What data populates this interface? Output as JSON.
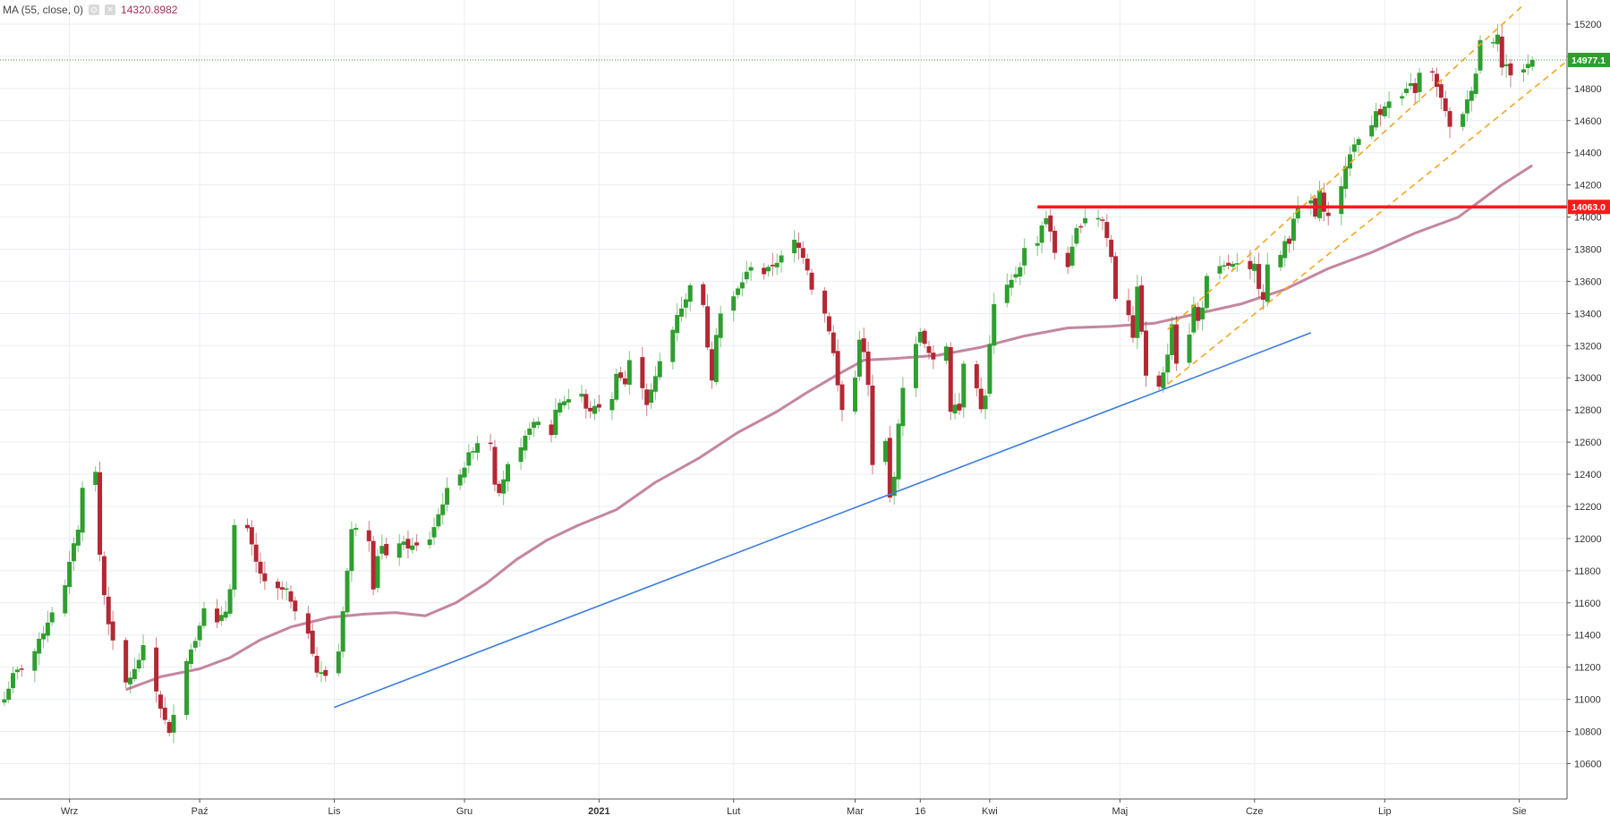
{
  "legend": {
    "label": "MA (55, close, 0)",
    "value": "14320.8982",
    "settings_icon": "gear-icon",
    "close_icon": "close-icon"
  },
  "colors": {
    "up": "#2f9e2f",
    "down": "#b22833",
    "ma": "#c4869f",
    "trendline": "#3b7ddd",
    "channel": "#f5a623",
    "resistance": "#ff1a1a",
    "last_price_line": "#2f9e2f",
    "grid": "#e9edf2",
    "axis_text": "#333333"
  },
  "chart_data": {
    "type": "candlestick",
    "title": "",
    "y_ticks": [
      10600,
      10800,
      11000,
      11200,
      11400,
      11600,
      11800,
      12000,
      12200,
      12400,
      12600,
      12800,
      13000,
      13200,
      13400,
      13600,
      13800,
      14000,
      14200,
      14400,
      14600,
      14800,
      15000,
      15200
    ],
    "y_range": [
      10380,
      15350
    ],
    "x_range": [
      "2020-08-16",
      "2021-08-12"
    ],
    "x_labels": [
      {
        "date": "2020-09-01",
        "label": "Wrz",
        "bold": false
      },
      {
        "date": "2020-10-01",
        "label": "Paź",
        "bold": false
      },
      {
        "date": "2020-11-01",
        "label": "Lis",
        "bold": false
      },
      {
        "date": "2020-12-01",
        "label": "Gru",
        "bold": false
      },
      {
        "date": "2021-01-01",
        "label": "2021",
        "bold": true
      },
      {
        "date": "2021-02-01",
        "label": "Lut",
        "bold": false
      },
      {
        "date": "2021-03-01",
        "label": "Mar",
        "bold": false
      },
      {
        "date": "2021-03-16",
        "label": "16",
        "bold": false
      },
      {
        "date": "2021-04-01",
        "label": "Kwi",
        "bold": false
      },
      {
        "date": "2021-05-01",
        "label": "Maj",
        "bold": false
      },
      {
        "date": "2021-06-01",
        "label": "Cze",
        "bold": false
      },
      {
        "date": "2021-07-01",
        "label": "Lip",
        "bold": false
      },
      {
        "date": "2021-08-01",
        "label": "Sie",
        "bold": false
      }
    ],
    "close_path": [
      [
        "2020-08-17",
        11000
      ],
      [
        "2020-08-19",
        11150
      ],
      [
        "2020-08-21",
        11200
      ],
      [
        "2020-08-24",
        11300
      ],
      [
        "2020-08-26",
        11420
      ],
      [
        "2020-08-28",
        11550
      ],
      [
        "2020-08-31",
        11700
      ],
      [
        "2020-09-02",
        11980
      ],
      [
        "2020-09-03",
        12050
      ],
      [
        "2020-09-04",
        12330
      ],
      [
        "2020-09-07",
        12410
      ],
      [
        "2020-09-08",
        11900
      ],
      [
        "2020-09-09",
        11650
      ],
      [
        "2020-09-10",
        11480
      ],
      [
        "2020-09-11",
        11350
      ],
      [
        "2020-09-14",
        11100
      ],
      [
        "2020-09-16",
        11180
      ],
      [
        "2020-09-18",
        11320
      ],
      [
        "2020-09-21",
        11050
      ],
      [
        "2020-09-22",
        10950
      ],
      [
        "2020-09-24",
        10780
      ],
      [
        "2020-09-25",
        10920
      ],
      [
        "2020-09-28",
        11250
      ],
      [
        "2020-09-30",
        11370
      ],
      [
        "2020-10-02",
        11580
      ],
      [
        "2020-10-05",
        11470
      ],
      [
        "2020-10-07",
        11550
      ],
      [
        "2020-10-08",
        11700
      ],
      [
        "2020-10-09",
        12080
      ],
      [
        "2020-10-12",
        12050
      ],
      [
        "2020-10-13",
        11950
      ],
      [
        "2020-10-14",
        11850
      ],
      [
        "2020-10-16",
        11720
      ],
      [
        "2020-10-19",
        11680
      ],
      [
        "2020-10-21",
        11680
      ],
      [
        "2020-10-22",
        11600
      ],
      [
        "2020-10-23",
        11530
      ],
      [
        "2020-10-26",
        11420
      ],
      [
        "2020-10-27",
        11300
      ],
      [
        "2020-10-28",
        11170
      ],
      [
        "2020-10-30",
        11150
      ],
      [
        "2020-11-02",
        11300
      ],
      [
        "2020-11-03",
        11560
      ],
      [
        "2020-11-04",
        11800
      ],
      [
        "2020-11-05",
        12050
      ],
      [
        "2020-11-06",
        12080
      ],
      [
        "2020-11-09",
        12000
      ],
      [
        "2020-11-10",
        11700
      ],
      [
        "2020-11-11",
        11900
      ],
      [
        "2020-11-12",
        11950
      ],
      [
        "2020-11-13",
        11880
      ],
      [
        "2020-11-16",
        11980
      ],
      [
        "2020-11-18",
        11950
      ],
      [
        "2020-11-20",
        11950
      ],
      [
        "2020-11-23",
        12000
      ],
      [
        "2020-11-25",
        12150
      ],
      [
        "2020-11-27",
        12300
      ],
      [
        "2020-12-01",
        12450
      ],
      [
        "2020-12-02",
        12520
      ],
      [
        "2020-12-04",
        12600
      ],
      [
        "2020-12-07",
        12600
      ],
      [
        "2020-12-08",
        12350
      ],
      [
        "2020-12-09",
        12300
      ],
      [
        "2020-12-11",
        12450
      ],
      [
        "2020-12-14",
        12550
      ],
      [
        "2020-12-16",
        12700
      ],
      [
        "2020-12-18",
        12720
      ],
      [
        "2020-12-21",
        12650
      ],
      [
        "2020-12-22",
        12800
      ],
      [
        "2020-12-23",
        12850
      ],
      [
        "2020-12-28",
        12900
      ],
      [
        "2020-12-29",
        12800
      ],
      [
        "2020-12-30",
        12800
      ],
      [
        "2021-01-04",
        12860
      ],
      [
        "2021-01-05",
        13040
      ],
      [
        "2021-01-07",
        12960
      ],
      [
        "2021-01-08",
        13100
      ],
      [
        "2021-01-11",
        12950
      ],
      [
        "2021-01-12",
        12840
      ],
      [
        "2021-01-14",
        13000
      ],
      [
        "2021-01-15",
        13100
      ],
      [
        "2021-01-18",
        13300
      ],
      [
        "2021-01-19",
        13400
      ],
      [
        "2021-01-21",
        13480
      ],
      [
        "2021-01-22",
        13590
      ],
      [
        "2021-01-25",
        13440
      ],
      [
        "2021-01-26",
        13200
      ],
      [
        "2021-01-27",
        13000
      ],
      [
        "2021-01-28",
        13280
      ],
      [
        "2021-01-29",
        13400
      ],
      [
        "2021-02-01",
        13500
      ],
      [
        "2021-02-03",
        13600
      ],
      [
        "2021-02-05",
        13700
      ],
      [
        "2021-02-08",
        13650
      ],
      [
        "2021-02-10",
        13700
      ],
      [
        "2021-02-12",
        13750
      ],
      [
        "2021-02-15",
        13850
      ],
      [
        "2021-02-17",
        13760
      ],
      [
        "2021-02-18",
        13680
      ],
      [
        "2021-02-19",
        13560
      ],
      [
        "2021-02-22",
        13400
      ],
      [
        "2021-02-23",
        13300
      ],
      [
        "2021-02-24",
        13150
      ],
      [
        "2021-02-25",
        12950
      ],
      [
        "2021-02-26",
        12800
      ],
      [
        "2021-03-01",
        13000
      ],
      [
        "2021-03-02",
        13250
      ],
      [
        "2021-03-03",
        13150
      ],
      [
        "2021-03-04",
        12950
      ],
      [
        "2021-03-05",
        12450
      ],
      [
        "2021-03-08",
        12600
      ],
      [
        "2021-03-09",
        12250
      ],
      [
        "2021-03-10",
        12400
      ],
      [
        "2021-03-11",
        12700
      ],
      [
        "2021-03-12",
        12950
      ],
      [
        "2021-03-15",
        13200
      ],
      [
        "2021-03-16",
        13300
      ],
      [
        "2021-03-17",
        13200
      ],
      [
        "2021-03-19",
        13100
      ],
      [
        "2021-03-22",
        13200
      ],
      [
        "2021-03-23",
        12800
      ],
      [
        "2021-03-24",
        12850
      ],
      [
        "2021-03-25",
        12800
      ],
      [
        "2021-03-26",
        13100
      ],
      [
        "2021-03-29",
        12950
      ],
      [
        "2021-03-30",
        12800
      ],
      [
        "2021-03-31",
        12900
      ],
      [
        "2021-04-01",
        13200
      ],
      [
        "2021-04-02",
        13450
      ],
      [
        "2021-04-06",
        13600
      ],
      [
        "2021-04-08",
        13700
      ],
      [
        "2021-04-09",
        13800
      ],
      [
        "2021-04-12",
        13850
      ],
      [
        "2021-04-13",
        13950
      ],
      [
        "2021-04-14",
        14000
      ],
      [
        "2021-04-15",
        13900
      ],
      [
        "2021-04-16",
        13780
      ],
      [
        "2021-04-19",
        13700
      ],
      [
        "2021-04-20",
        13800
      ],
      [
        "2021-04-21",
        13920
      ],
      [
        "2021-04-23",
        14000
      ],
      [
        "2021-04-26",
        14000
      ],
      [
        "2021-04-27",
        13980
      ],
      [
        "2021-04-28",
        13870
      ],
      [
        "2021-04-29",
        13750
      ],
      [
        "2021-04-30",
        13500
      ],
      [
        "2021-05-03",
        13400
      ],
      [
        "2021-05-04",
        13260
      ],
      [
        "2021-05-05",
        13550
      ],
      [
        "2021-05-06",
        13300
      ],
      [
        "2021-05-07",
        13000
      ],
      [
        "2021-05-10",
        12950
      ],
      [
        "2021-05-11",
        13020
      ],
      [
        "2021-05-12",
        13150
      ],
      [
        "2021-05-13",
        13350
      ],
      [
        "2021-05-14",
        13100
      ],
      [
        "2021-05-17",
        13280
      ],
      [
        "2021-05-18",
        13450
      ],
      [
        "2021-05-19",
        13350
      ],
      [
        "2021-05-20",
        13450
      ],
      [
        "2021-05-21",
        13620
      ],
      [
        "2021-05-24",
        13680
      ],
      [
        "2021-05-26",
        13700
      ],
      [
        "2021-05-28",
        13700
      ],
      [
        "2021-05-31",
        13660
      ],
      [
        "2021-06-01",
        13700
      ],
      [
        "2021-06-02",
        13570
      ],
      [
        "2021-06-03",
        13500
      ],
      [
        "2021-06-04",
        13700
      ],
      [
        "2021-06-07",
        13750
      ],
      [
        "2021-06-08",
        13850
      ],
      [
        "2021-06-09",
        13850
      ],
      [
        "2021-06-10",
        14000
      ],
      [
        "2021-06-11",
        14050
      ],
      [
        "2021-06-14",
        14100
      ],
      [
        "2021-06-15",
        14000
      ],
      [
        "2021-06-16",
        14150
      ],
      [
        "2021-06-17",
        14050
      ],
      [
        "2021-06-18",
        14000
      ],
      [
        "2021-06-21",
        14200
      ],
      [
        "2021-06-22",
        14300
      ],
      [
        "2021-06-23",
        14400
      ],
      [
        "2021-06-25",
        14500
      ],
      [
        "2021-06-28",
        14560
      ],
      [
        "2021-06-29",
        14660
      ],
      [
        "2021-06-30",
        14650
      ],
      [
        "2021-07-01",
        14700
      ],
      [
        "2021-07-05",
        14750
      ],
      [
        "2021-07-07",
        14820
      ],
      [
        "2021-07-08",
        14780
      ],
      [
        "2021-07-09",
        14890
      ],
      [
        "2021-07-12",
        14900
      ],
      [
        "2021-07-13",
        14800
      ],
      [
        "2021-07-14",
        14750
      ],
      [
        "2021-07-15",
        14650
      ],
      [
        "2021-07-16",
        14550
      ],
      [
        "2021-07-19",
        14650
      ],
      [
        "2021-07-20",
        14720
      ],
      [
        "2021-07-21",
        14800
      ],
      [
        "2021-07-22",
        14900
      ],
      [
        "2021-07-23",
        15100
      ],
      [
        "2021-07-26",
        15100
      ],
      [
        "2021-07-27",
        15150
      ],
      [
        "2021-07-28",
        14930
      ],
      [
        "2021-07-29",
        14940
      ],
      [
        "2021-07-30",
        14890
      ],
      [
        "2021-08-02",
        14920
      ],
      [
        "2021-08-03",
        14950
      ],
      [
        "2021-08-04",
        14977
      ]
    ],
    "ma": {
      "label": "MA (55, close, 0)",
      "last_value": 14320.8982,
      "points": [
        [
          "2020-09-14",
          11060
        ],
        [
          "2020-09-22",
          11140
        ],
        [
          "2020-10-01",
          11190
        ],
        [
          "2020-10-08",
          11260
        ],
        [
          "2020-10-15",
          11370
        ],
        [
          "2020-10-22",
          11450
        ],
        [
          "2020-10-31",
          11510
        ],
        [
          "2020-11-08",
          11530
        ],
        [
          "2020-11-15",
          11540
        ],
        [
          "2020-11-22",
          11520
        ],
        [
          "2020-11-29",
          11600
        ],
        [
          "2020-12-06",
          11720
        ],
        [
          "2020-12-13",
          11870
        ],
        [
          "2020-12-20",
          11990
        ],
        [
          "2020-12-27",
          12080
        ],
        [
          "2021-01-05",
          12180
        ],
        [
          "2021-01-14",
          12350
        ],
        [
          "2021-01-24",
          12500
        ],
        [
          "2021-02-02",
          12660
        ],
        [
          "2021-02-11",
          12790
        ],
        [
          "2021-02-18",
          12910
        ],
        [
          "2021-02-25",
          13020
        ],
        [
          "2021-03-03",
          13110
        ],
        [
          "2021-03-10",
          13120
        ],
        [
          "2021-03-20",
          13140
        ],
        [
          "2021-03-30",
          13190
        ],
        [
          "2021-04-09",
          13260
        ],
        [
          "2021-04-19",
          13310
        ],
        [
          "2021-04-29",
          13320
        ],
        [
          "2021-05-09",
          13340
        ],
        [
          "2021-05-19",
          13400
        ],
        [
          "2021-05-29",
          13460
        ],
        [
          "2021-06-08",
          13550
        ],
        [
          "2021-06-18",
          13680
        ],
        [
          "2021-06-28",
          13780
        ],
        [
          "2021-07-08",
          13900
        ],
        [
          "2021-07-18",
          14000
        ],
        [
          "2021-07-28",
          14200
        ],
        [
          "2021-08-04",
          14321
        ]
      ]
    },
    "drawings": {
      "trendline": [
        [
          "2020-11-01",
          10950
        ],
        [
          "2021-06-14",
          13280
        ]
      ],
      "resistance": {
        "from": "2021-04-12",
        "value": 14063.0,
        "label": "14063.0"
      },
      "channel_upper": [
        [
          "2021-05-12",
          13300
        ],
        [
          "2021-08-02",
          15320
        ]
      ],
      "channel_lower": [
        [
          "2021-05-12",
          12960
        ],
        [
          "2021-08-12",
          14970
        ]
      ]
    },
    "last_price": {
      "value": 14977.1,
      "label": "14977.1"
    }
  }
}
